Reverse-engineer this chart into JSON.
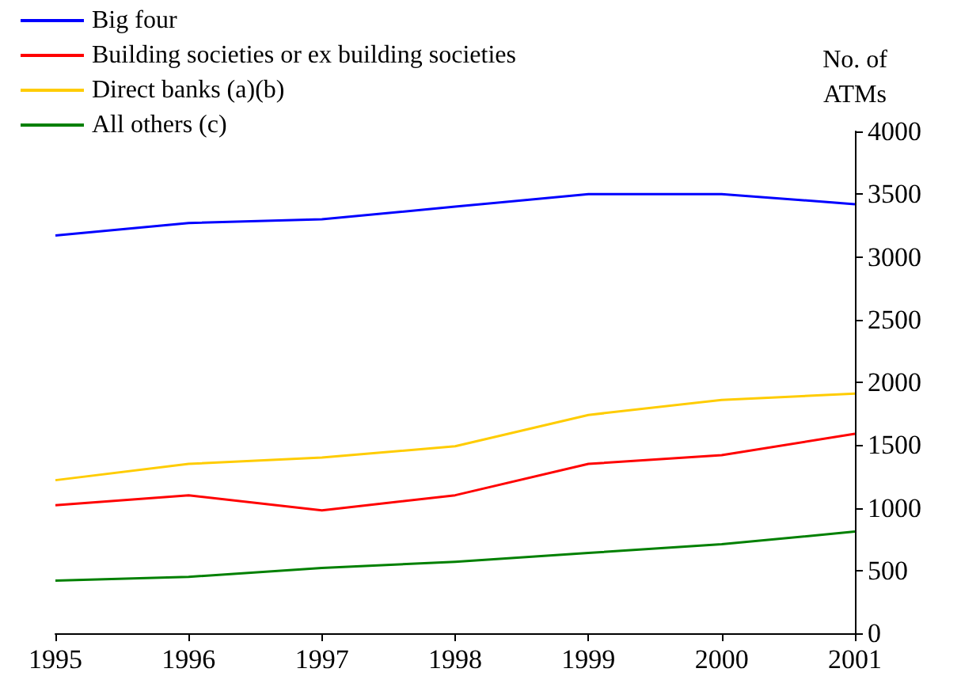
{
  "chart_data": {
    "type": "line",
    "ylabel": "No. of\nATMs",
    "x": [
      1995,
      1996,
      1997,
      1998,
      1999,
      2000,
      2001
    ],
    "series": [
      {
        "name": "Big four",
        "color": "#0000ff",
        "values": [
          3170,
          3270,
          3300,
          3400,
          3500,
          3500,
          3420
        ]
      },
      {
        "name": "Building societies or ex building societies",
        "color": "#ff0000",
        "values": [
          1020,
          1100,
          980,
          1100,
          1350,
          1420,
          1590
        ]
      },
      {
        "name": "Direct banks (a)(b)",
        "color": "#ffcc00",
        "values": [
          1220,
          1350,
          1400,
          1490,
          1740,
          1860,
          1910
        ]
      },
      {
        "name": "All others (c)",
        "color": "#008000",
        "values": [
          420,
          450,
          520,
          570,
          640,
          710,
          810
        ]
      }
    ],
    "xlim": [
      1995,
      2001
    ],
    "xticks": [
      1995,
      1996,
      1997,
      1998,
      1999,
      2000,
      2001
    ],
    "ylim": [
      0,
      4000
    ],
    "yticks": [
      0,
      500,
      1000,
      1500,
      2000,
      2500,
      3000,
      3500,
      4000
    ],
    "grid": false,
    "legend": "top left",
    "marker": "none",
    "line_style": "solid"
  }
}
